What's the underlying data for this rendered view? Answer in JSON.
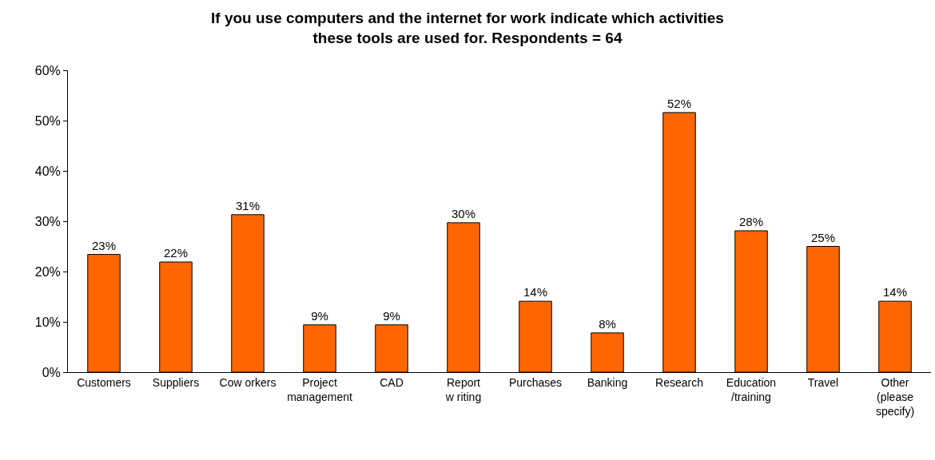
{
  "chart_data": {
    "type": "bar",
    "title": "If you use computers and the internet for work indicate which activities\nthese tools are used for. Respondents = 64",
    "categories": [
      "Customers",
      "Suppliers",
      "Cow orkers",
      "Project\nmanagement",
      "CAD",
      "Report\nw riting",
      "Purchases",
      "Banking",
      "Research",
      "Education\n/training",
      "Travel",
      "Other\n(please\nspecify)"
    ],
    "values": [
      23.4,
      21.9,
      31.3,
      9.4,
      9.4,
      29.7,
      14.1,
      7.8,
      51.6,
      28.1,
      25.0,
      14.1
    ],
    "value_labels": [
      "23%",
      "22%",
      "31%",
      "9%",
      "9%",
      "30%",
      "14%",
      "8%",
      "52%",
      "28%",
      "25%",
      "14%"
    ],
    "color": "#ff6600",
    "ylim": [
      0,
      60
    ],
    "yticks": [
      {
        "value": 0,
        "label": "0%"
      },
      {
        "value": 10,
        "label": "10%"
      },
      {
        "value": 20,
        "label": "20%"
      },
      {
        "value": 30,
        "label": "30%"
      },
      {
        "value": 40,
        "label": "40%"
      },
      {
        "value": 50,
        "label": "50%"
      },
      {
        "value": 60,
        "label": "60%"
      }
    ],
    "grid": false,
    "legend": false
  }
}
